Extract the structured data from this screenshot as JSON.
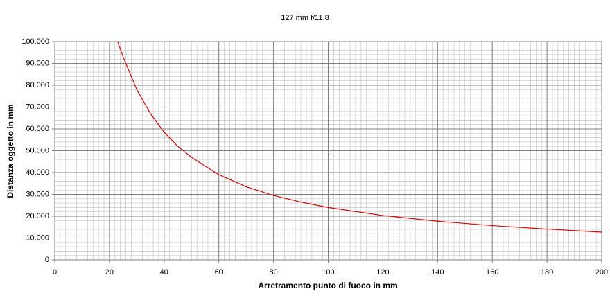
{
  "chart_data": {
    "type": "line",
    "title": "127 mm f/11,8",
    "xlabel": "Arretramento punto di fuoco in mm",
    "ylabel": "Distanza oggetto in mm",
    "x": [
      23,
      25,
      30,
      35,
      40,
      45,
      50,
      60,
      70,
      80,
      90,
      100,
      120,
      140,
      160,
      180,
      200
    ],
    "series": [
      {
        "color": "#e00000",
        "values": [
          100000,
          93000,
          78000,
          67000,
          58500,
          52000,
          47000,
          39000,
          33500,
          29500,
          26500,
          24000,
          20300,
          17700,
          15700,
          14100,
          12700
        ]
      }
    ],
    "xlim": [
      0,
      200
    ],
    "xticks": [
      0,
      20,
      40,
      60,
      80,
      100,
      120,
      140,
      160,
      180,
      200
    ],
    "ylim": [
      0,
      100000
    ],
    "yticks": [
      0,
      {
        "value": 10000,
        "label": "10.000"
      },
      {
        "value": 20000,
        "label": "20.000"
      },
      {
        "value": 30000,
        "label": "30.000"
      },
      {
        "value": 40000,
        "label": "40.000"
      },
      {
        "value": 50000,
        "label": "50.000"
      },
      {
        "value": 60000,
        "label": "60.000"
      },
      {
        "value": 70000,
        "label": "70.000"
      },
      {
        "value": 80000,
        "label": "80.000"
      },
      {
        "value": 90000,
        "label": "90.000"
      },
      {
        "value": 100000,
        "label": "100.000"
      }
    ],
    "grid": true,
    "minor_grid": {
      "x": 2,
      "y": 2000
    }
  }
}
